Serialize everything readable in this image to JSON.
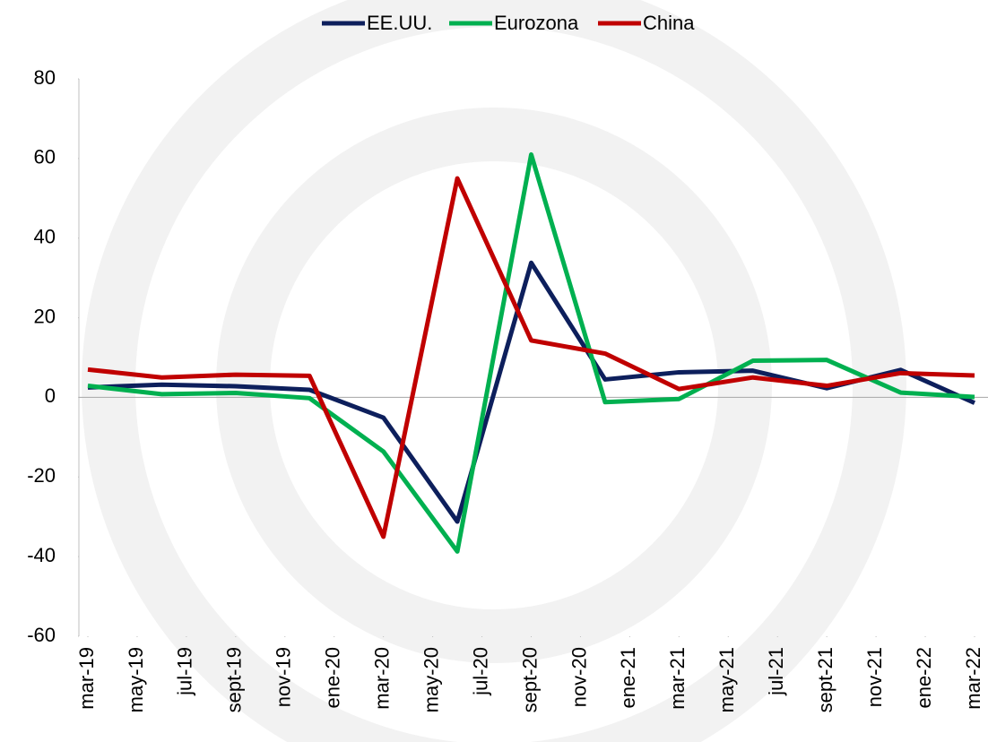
{
  "chart_data": {
    "type": "line",
    "x": [
      0,
      3,
      6,
      9,
      12,
      15,
      18,
      21,
      24,
      27,
      30,
      33,
      36
    ],
    "xlim": [
      0,
      36
    ],
    "xticks": [
      {
        "value": 0,
        "label": "mar-19"
      },
      {
        "value": 2,
        "label": "may-19"
      },
      {
        "value": 4,
        "label": "jul-19"
      },
      {
        "value": 6,
        "label": "sept-19"
      },
      {
        "value": 8,
        "label": "nov-19"
      },
      {
        "value": 10,
        "label": "ene-20"
      },
      {
        "value": 12,
        "label": "mar-20"
      },
      {
        "value": 14,
        "label": "may-20"
      },
      {
        "value": 16,
        "label": "jul-20"
      },
      {
        "value": 18,
        "label": "sept-20"
      },
      {
        "value": 20,
        "label": "nov-20"
      },
      {
        "value": 22,
        "label": "ene-21"
      },
      {
        "value": 24,
        "label": "mar-21"
      },
      {
        "value": 26,
        "label": "may-21"
      },
      {
        "value": 28,
        "label": "jul-21"
      },
      {
        "value": 30,
        "label": "sept-21"
      },
      {
        "value": 32,
        "label": "nov-21"
      },
      {
        "value": 34,
        "label": "ene-22"
      },
      {
        "value": 36,
        "label": "mar-22"
      }
    ],
    "ylim": [
      -60,
      80
    ],
    "yticks": [
      -60,
      -40,
      -20,
      0,
      20,
      40,
      60,
      80
    ],
    "legend": "top",
    "series": [
      {
        "name": "EE.UU.",
        "color": "#0d1f5c",
        "values": [
          2.5,
          3.2,
          2.8,
          1.9,
          -5.1,
          -31.2,
          33.8,
          4.5,
          6.3,
          6.7,
          2.3,
          6.9,
          -1.4
        ]
      },
      {
        "name": "Eurozona",
        "color": "#00b050",
        "values": [
          2.9,
          0.8,
          1.1,
          -0.2,
          -13.6,
          -38.7,
          61,
          -1.2,
          -0.4,
          9.2,
          9.4,
          1.2,
          0.1
        ]
      },
      {
        "name": "China",
        "color": "#c00000",
        "values": [
          7,
          5,
          5.7,
          5.4,
          -35,
          55,
          14.3,
          11,
          2.1,
          5,
          2.9,
          6.1,
          5.5
        ]
      }
    ]
  }
}
